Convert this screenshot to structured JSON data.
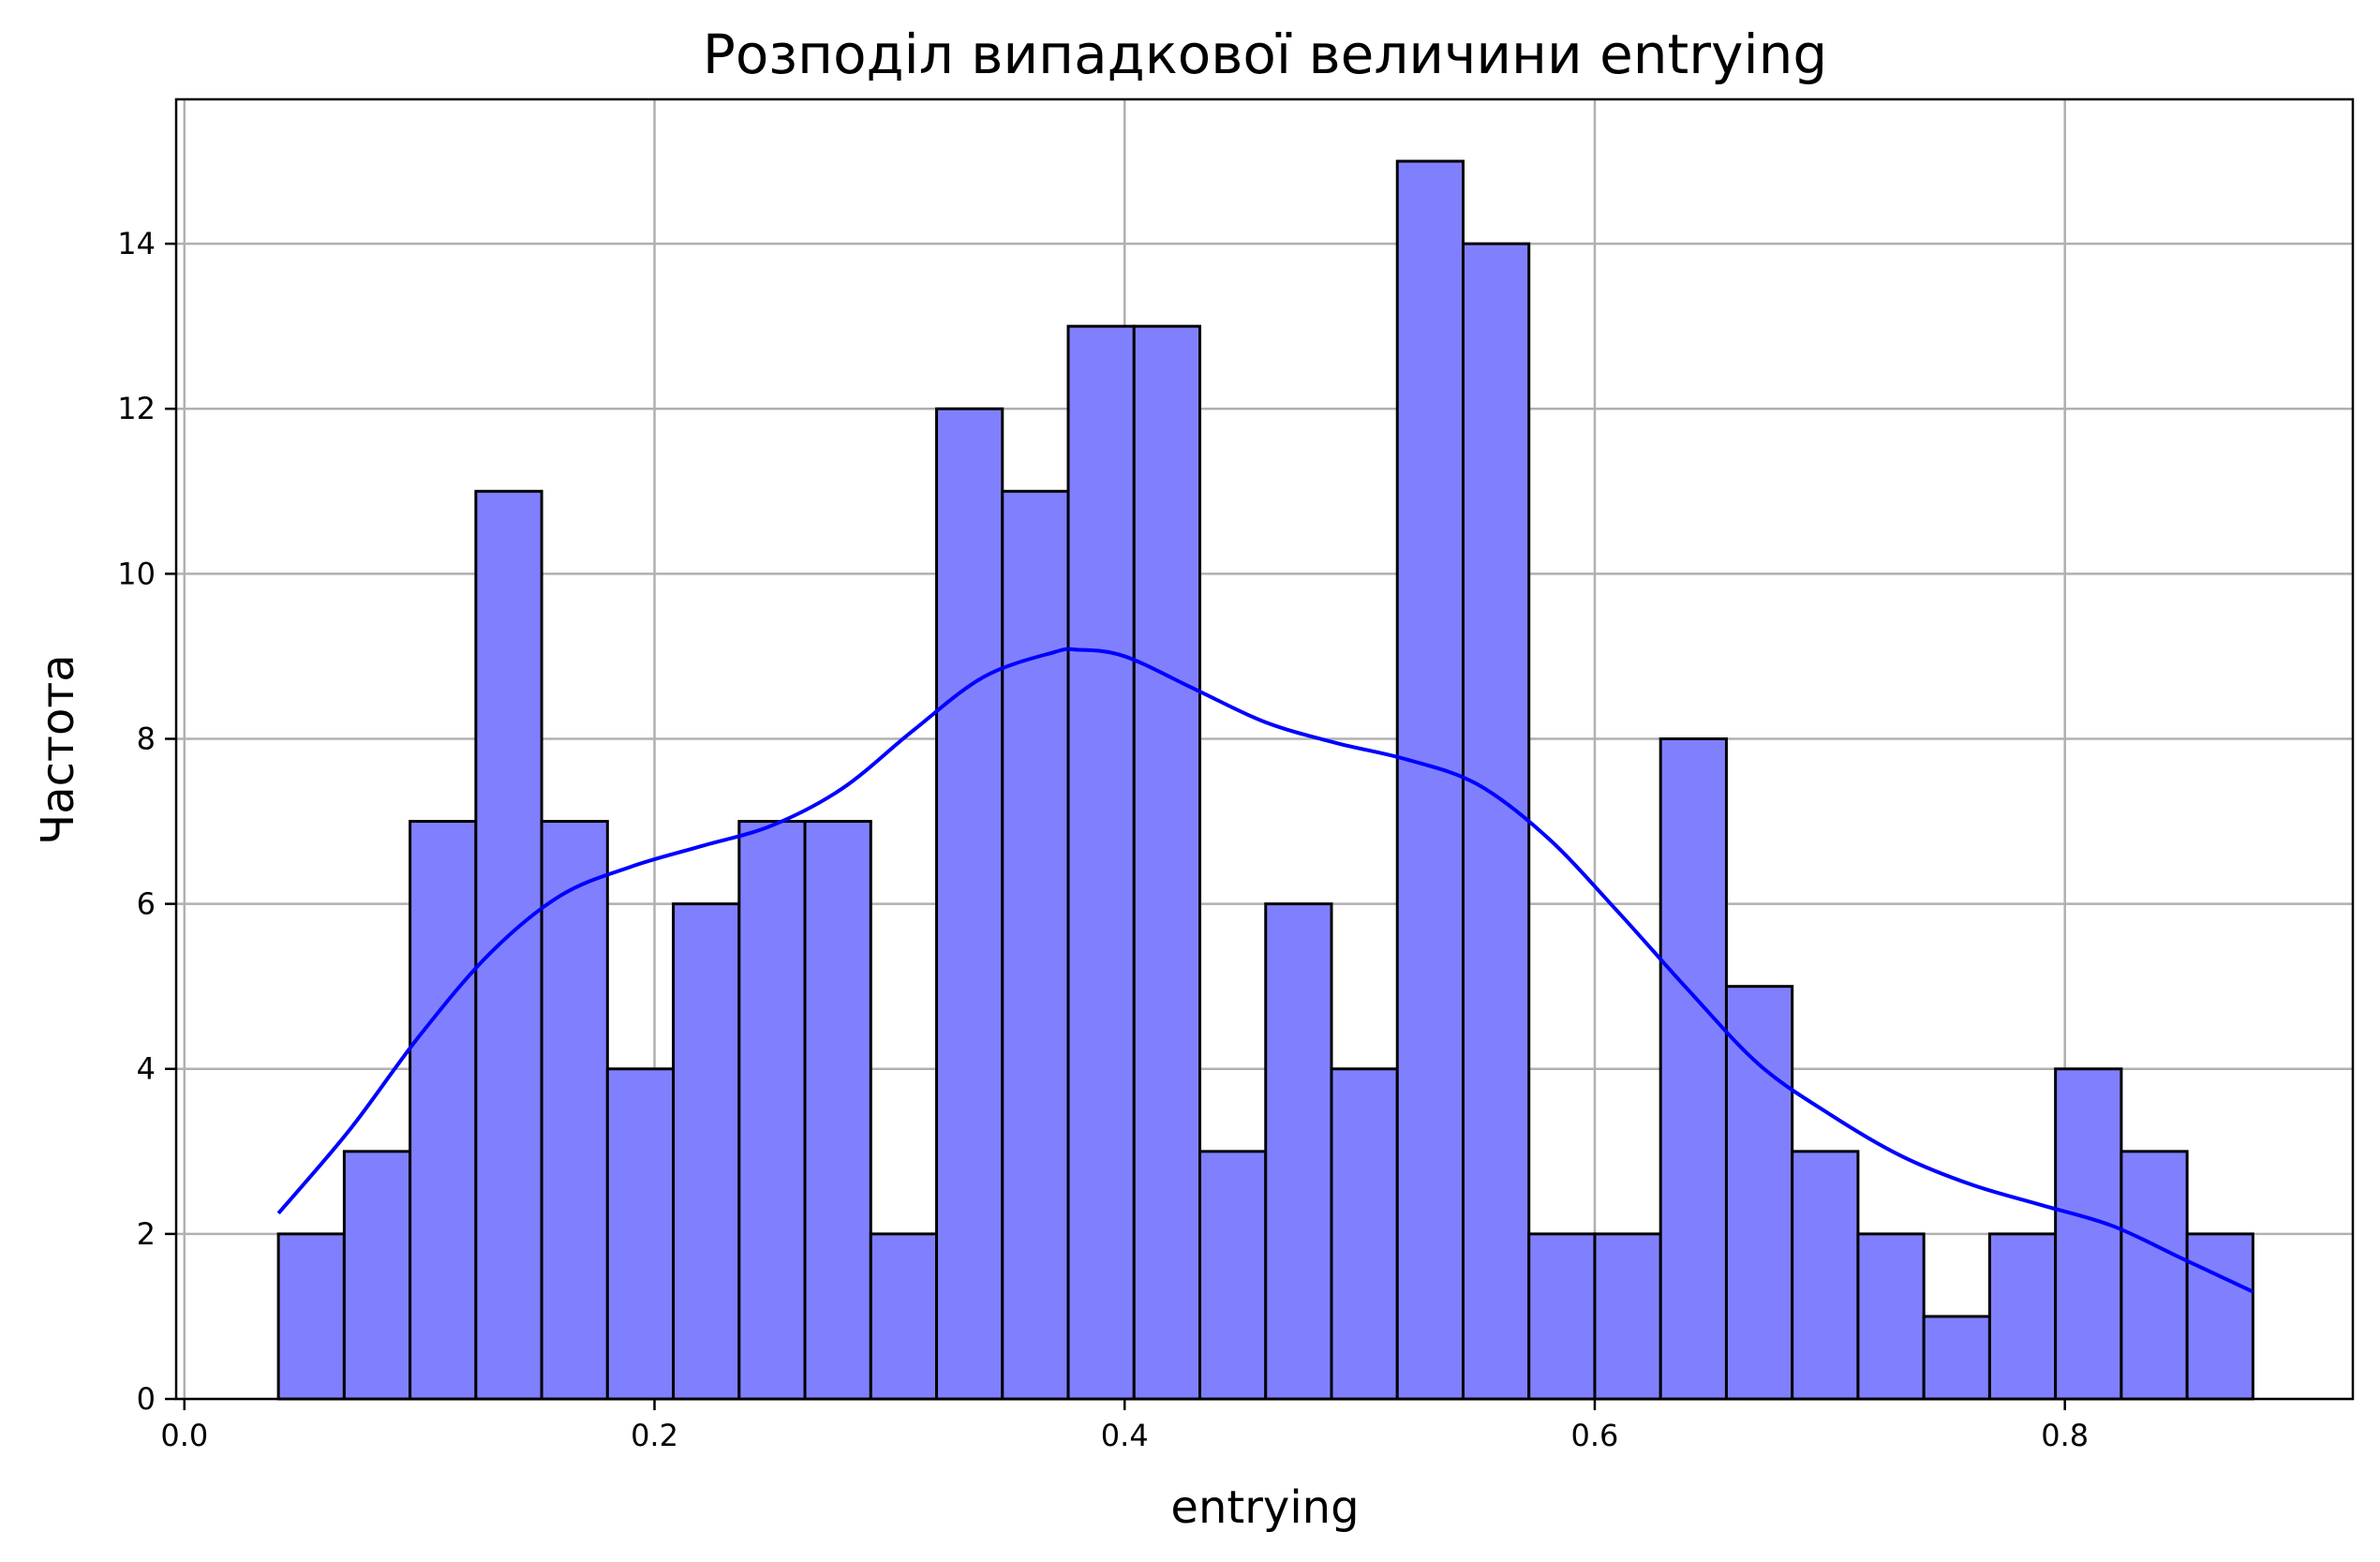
{
  "chart_data": {
    "type": "bar",
    "title": "Розподіл випадкової величини entrying",
    "xlabel": "entrying",
    "ylabel": "Частота",
    "xlim": [
      -0.0035,
      0.9225
    ],
    "ylim": [
      0,
      15.75
    ],
    "xticks": [
      0.0,
      0.2,
      0.4,
      0.6,
      0.8
    ],
    "xtick_labels": [
      "0.0",
      "0.2",
      "0.4",
      "0.6",
      "0.8"
    ],
    "yticks": [
      0,
      2,
      4,
      6,
      8,
      10,
      12,
      14
    ],
    "ytick_labels": [
      "0",
      "2",
      "4",
      "6",
      "8",
      "10",
      "12",
      "14"
    ],
    "grid": true,
    "bin_edges": [
      0.04,
      0.068,
      0.096,
      0.124,
      0.152,
      0.18,
      0.208,
      0.236,
      0.264,
      0.292,
      0.32,
      0.348,
      0.376,
      0.404,
      0.432,
      0.46,
      0.488,
      0.516,
      0.544,
      0.572,
      0.6,
      0.628,
      0.656,
      0.684,
      0.712,
      0.74,
      0.768,
      0.796,
      0.824,
      0.852,
      0.88
    ],
    "values": [
      2,
      3,
      7,
      11,
      7,
      4,
      6,
      7,
      7,
      2,
      12,
      11,
      13,
      13,
      3,
      6,
      4,
      15,
      14,
      2,
      2,
      8,
      5,
      3,
      2,
      1,
      2,
      4,
      3,
      2
    ],
    "kde": {
      "x": [
        0.04,
        0.07,
        0.1,
        0.13,
        0.16,
        0.19,
        0.22,
        0.25,
        0.28,
        0.31,
        0.34,
        0.37,
        0.38,
        0.4,
        0.43,
        0.46,
        0.49,
        0.52,
        0.55,
        0.58,
        0.61,
        0.64,
        0.67,
        0.7,
        0.73,
        0.76,
        0.79,
        0.82,
        0.85,
        0.88
      ],
      "y": [
        2.25,
        3.25,
        4.4,
        5.4,
        6.1,
        6.45,
        6.7,
        6.95,
        7.4,
        8.1,
        8.75,
        9.05,
        9.08,
        9.0,
        8.6,
        8.2,
        7.95,
        7.75,
        7.45,
        6.8,
        5.9,
        4.95,
        4.05,
        3.45,
        2.95,
        2.6,
        2.35,
        2.1,
        1.7,
        1.3
      ]
    },
    "colors": {
      "bar_fill": "#8080ff",
      "bar_edge": "#000000",
      "kde_line": "#0000ff",
      "grid": "#b0b0b0"
    }
  }
}
